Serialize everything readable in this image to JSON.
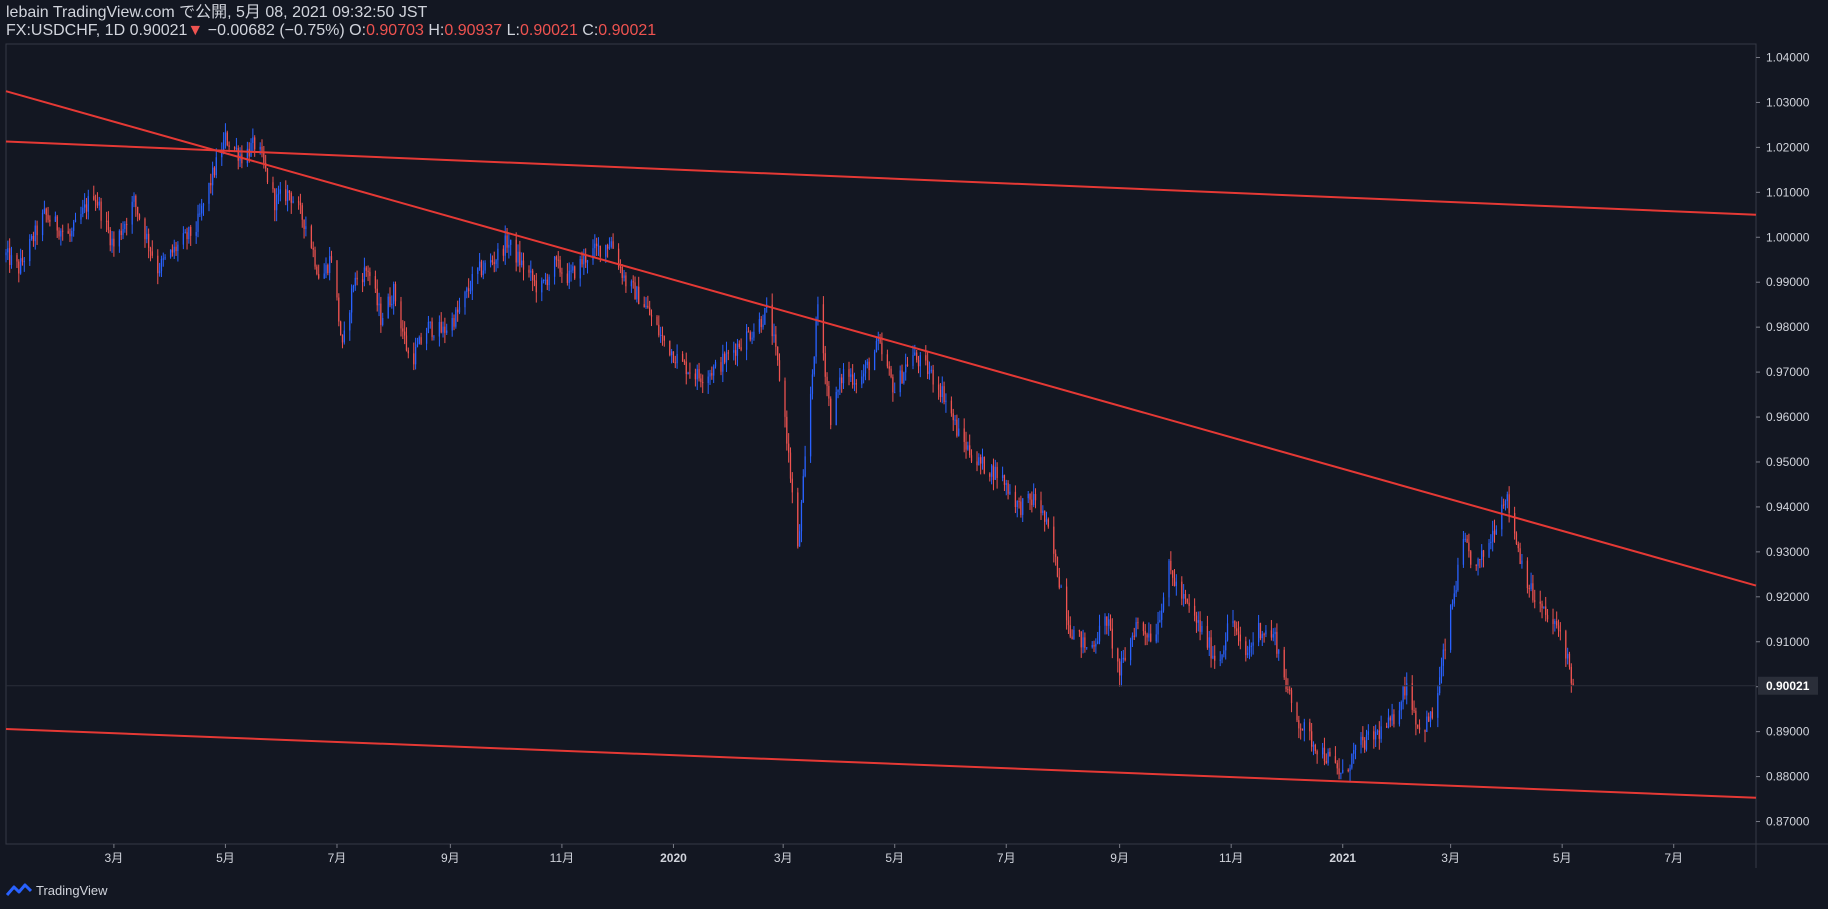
{
  "header": {
    "line1": "lebain TradingView.com で公開, 5月 08, 2021 09:32:50 JST",
    "symbol": "FX:USDCHF, 1D",
    "last": "0.90021",
    "change": "−0.00682 (−0.75%)",
    "o_label": "O:",
    "o_value": "0.90703",
    "h_label": "H:",
    "h_value": "0.90937",
    "l_label": "L:",
    "l_value": "0.90021",
    "c_label": "C:",
    "c_value": "0.90021"
  },
  "footer": {
    "brand": "TradingView"
  },
  "colors": {
    "background": "#131722",
    "up": "#2962ff",
    "down": "#ef5350",
    "trendline": "#e53935",
    "grid": "#363a45",
    "text": "#d1d4dc"
  },
  "chart_data": {
    "type": "candlestick",
    "symbol": "FX:USDCHF",
    "interval": "1D",
    "ylim": [
      0.865,
      1.043
    ],
    "y_ticks": [
      "1.04000",
      "1.03000",
      "1.02000",
      "1.01000",
      "1.00000",
      "0.99000",
      "0.98000",
      "0.97000",
      "0.96000",
      "0.95000",
      "0.94000",
      "0.93000",
      "0.92000",
      "0.91000",
      "0.90000",
      "0.89000",
      "0.88000",
      "0.87000"
    ],
    "y_tick_values": [
      1.04,
      1.03,
      1.02,
      1.01,
      1.0,
      0.99,
      0.98,
      0.97,
      0.96,
      0.95,
      0.94,
      0.93,
      0.92,
      0.91,
      0.9,
      0.89,
      0.88,
      0.87
    ],
    "last_price_label": "0.90021",
    "last_price": 0.90021,
    "x_range": [
      "2019-01-01",
      "2021-08-15"
    ],
    "x_ticks": [
      {
        "label": "3月",
        "date": "2019-03-01"
      },
      {
        "label": "5月",
        "date": "2019-05-01"
      },
      {
        "label": "7月",
        "date": "2019-07-01"
      },
      {
        "label": "9月",
        "date": "2019-09-01"
      },
      {
        "label": "11月",
        "date": "2019-11-01"
      },
      {
        "label": "2020",
        "date": "2020-01-01"
      },
      {
        "label": "3月",
        "date": "2020-03-01"
      },
      {
        "label": "5月",
        "date": "2020-05-01"
      },
      {
        "label": "7月",
        "date": "2020-07-01"
      },
      {
        "label": "9月",
        "date": "2020-09-01"
      },
      {
        "label": "11月",
        "date": "2020-11-01"
      },
      {
        "label": "2021",
        "date": "2021-01-01"
      },
      {
        "label": "3月",
        "date": "2021-03-01"
      },
      {
        "label": "5月",
        "date": "2021-05-01"
      },
      {
        "label": "7月",
        "date": "2021-07-01"
      }
    ],
    "price_path": [
      [
        "2019-01-01",
        0.996
      ],
      [
        "2019-01-08",
        0.993
      ],
      [
        "2019-01-22",
        1.005
      ],
      [
        "2019-02-05",
        1.0
      ],
      [
        "2019-02-18",
        1.01
      ],
      [
        "2019-03-01",
        0.998
      ],
      [
        "2019-03-12",
        1.008
      ],
      [
        "2019-03-25",
        0.993
      ],
      [
        "2019-04-05",
        0.998
      ],
      [
        "2019-04-15",
        1.002
      ],
      [
        "2019-04-25",
        1.015
      ],
      [
        "2019-05-01",
        1.022
      ],
      [
        "2019-05-10",
        1.018
      ],
      [
        "2019-05-18",
        1.021
      ],
      [
        "2019-05-28",
        1.008
      ],
      [
        "2019-06-05",
        1.01
      ],
      [
        "2019-06-15",
        1.002
      ],
      [
        "2019-06-22",
        0.99
      ],
      [
        "2019-06-28",
        0.996
      ],
      [
        "2019-07-04",
        0.975
      ],
      [
        "2019-07-10",
        0.99
      ],
      [
        "2019-07-18",
        0.993
      ],
      [
        "2019-07-25",
        0.982
      ],
      [
        "2019-08-01",
        0.988
      ],
      [
        "2019-08-10",
        0.972
      ],
      [
        "2019-08-20",
        0.98
      ],
      [
        "2019-08-28",
        0.979
      ],
      [
        "2019-09-05",
        0.983
      ],
      [
        "2019-09-15",
        0.992
      ],
      [
        "2019-09-25",
        0.995
      ],
      [
        "2019-10-02",
        0.999
      ],
      [
        "2019-10-10",
        0.994
      ],
      [
        "2019-10-20",
        0.988
      ],
      [
        "2019-10-28",
        0.994
      ],
      [
        "2019-11-05",
        0.991
      ],
      [
        "2019-11-15",
        0.996
      ],
      [
        "2019-11-28",
        0.999
      ],
      [
        "2019-12-06",
        0.99
      ],
      [
        "2019-12-15",
        0.986
      ],
      [
        "2019-12-25",
        0.978
      ],
      [
        "2020-01-05",
        0.972
      ],
      [
        "2020-01-15",
        0.969
      ],
      [
        "2020-01-25",
        0.971
      ],
      [
        "2020-02-05",
        0.976
      ],
      [
        "2020-02-15",
        0.98
      ],
      [
        "2020-02-22",
        0.984
      ],
      [
        "2020-03-01",
        0.964
      ],
      [
        "2020-03-09",
        0.93
      ],
      [
        "2020-03-13",
        0.95
      ],
      [
        "2020-03-20",
        0.985
      ],
      [
        "2020-03-27",
        0.96
      ],
      [
        "2020-04-03",
        0.97
      ],
      [
        "2020-04-12",
        0.968
      ],
      [
        "2020-04-22",
        0.976
      ],
      [
        "2020-05-01",
        0.966
      ],
      [
        "2020-05-10",
        0.974
      ],
      [
        "2020-05-20",
        0.97
      ],
      [
        "2020-05-28",
        0.965
      ],
      [
        "2020-06-05",
        0.956
      ],
      [
        "2020-06-15",
        0.95
      ],
      [
        "2020-06-28",
        0.947
      ],
      [
        "2020-07-08",
        0.94
      ],
      [
        "2020-07-18",
        0.942
      ],
      [
        "2020-07-25",
        0.933
      ],
      [
        "2020-08-05",
        0.913
      ],
      [
        "2020-08-15",
        0.908
      ],
      [
        "2020-08-25",
        0.915
      ],
      [
        "2020-09-01",
        0.903
      ],
      [
        "2020-09-10",
        0.914
      ],
      [
        "2020-09-20",
        0.911
      ],
      [
        "2020-09-28",
        0.926
      ],
      [
        "2020-10-05",
        0.92
      ],
      [
        "2020-10-15",
        0.913
      ],
      [
        "2020-10-25",
        0.905
      ],
      [
        "2020-11-01",
        0.916
      ],
      [
        "2020-11-08",
        0.906
      ],
      [
        "2020-11-16",
        0.913
      ],
      [
        "2020-11-25",
        0.911
      ],
      [
        "2020-12-05",
        0.894
      ],
      [
        "2020-12-15",
        0.888
      ],
      [
        "2020-12-22",
        0.885
      ],
      [
        "2021-01-01",
        0.88
      ],
      [
        "2021-01-08",
        0.886
      ],
      [
        "2021-01-18",
        0.889
      ],
      [
        "2021-01-28",
        0.892
      ],
      [
        "2021-02-05",
        0.901
      ],
      [
        "2021-02-12",
        0.89
      ],
      [
        "2021-02-20",
        0.894
      ],
      [
        "2021-02-28",
        0.914
      ],
      [
        "2021-03-08",
        0.932
      ],
      [
        "2021-03-15",
        0.926
      ],
      [
        "2021-03-22",
        0.932
      ],
      [
        "2021-03-31",
        0.943
      ],
      [
        "2021-04-08",
        0.929
      ],
      [
        "2021-04-15",
        0.92
      ],
      [
        "2021-04-25",
        0.914
      ],
      [
        "2021-05-01",
        0.912
      ],
      [
        "2021-05-07",
        0.90021
      ]
    ],
    "trendlines": [
      {
        "from": [
          "2019-01-01",
          1.0325
        ],
        "to": [
          "2021-08-15",
          0.9225
        ]
      },
      {
        "from": [
          "2019-01-01",
          1.0213
        ],
        "to": [
          "2021-08-15",
          1.005
        ]
      },
      {
        "from": [
          "2019-01-01",
          0.8906
        ],
        "to": [
          "2021-08-15",
          0.8753
        ]
      }
    ]
  }
}
